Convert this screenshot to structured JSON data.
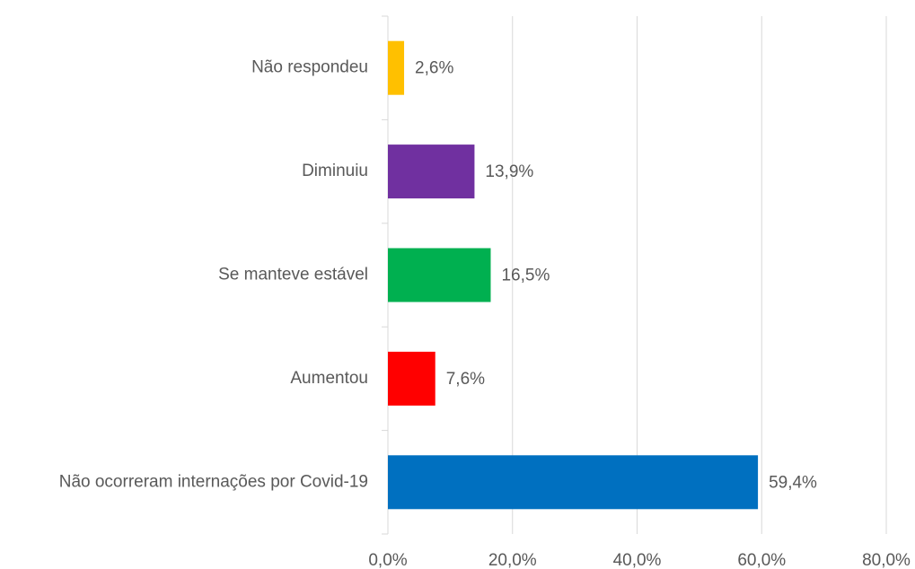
{
  "chart_data": {
    "type": "barh",
    "categories": [
      "Não respondeu",
      "Diminuiu",
      "Se manteve estável",
      "Aumentou",
      "Não ocorreram internações por Covid-19"
    ],
    "values": [
      2.6,
      13.9,
      16.5,
      7.6,
      59.4
    ],
    "value_labels": [
      "2,6%",
      "13,9%",
      "16,5%",
      "7,6%",
      "59,4%"
    ],
    "colors": [
      "#ffc000",
      "#7030a0",
      "#00b050",
      "#ff0000",
      "#0070c0"
    ],
    "xlim": [
      0,
      80
    ],
    "xticks": [
      {
        "value": 0,
        "label": "0,0%"
      },
      {
        "value": 20,
        "label": "20,0%"
      },
      {
        "value": 40,
        "label": "40,0%"
      },
      {
        "value": 60,
        "label": "60,0%"
      },
      {
        "value": 80,
        "label": "80,0%"
      }
    ],
    "grid": true
  }
}
